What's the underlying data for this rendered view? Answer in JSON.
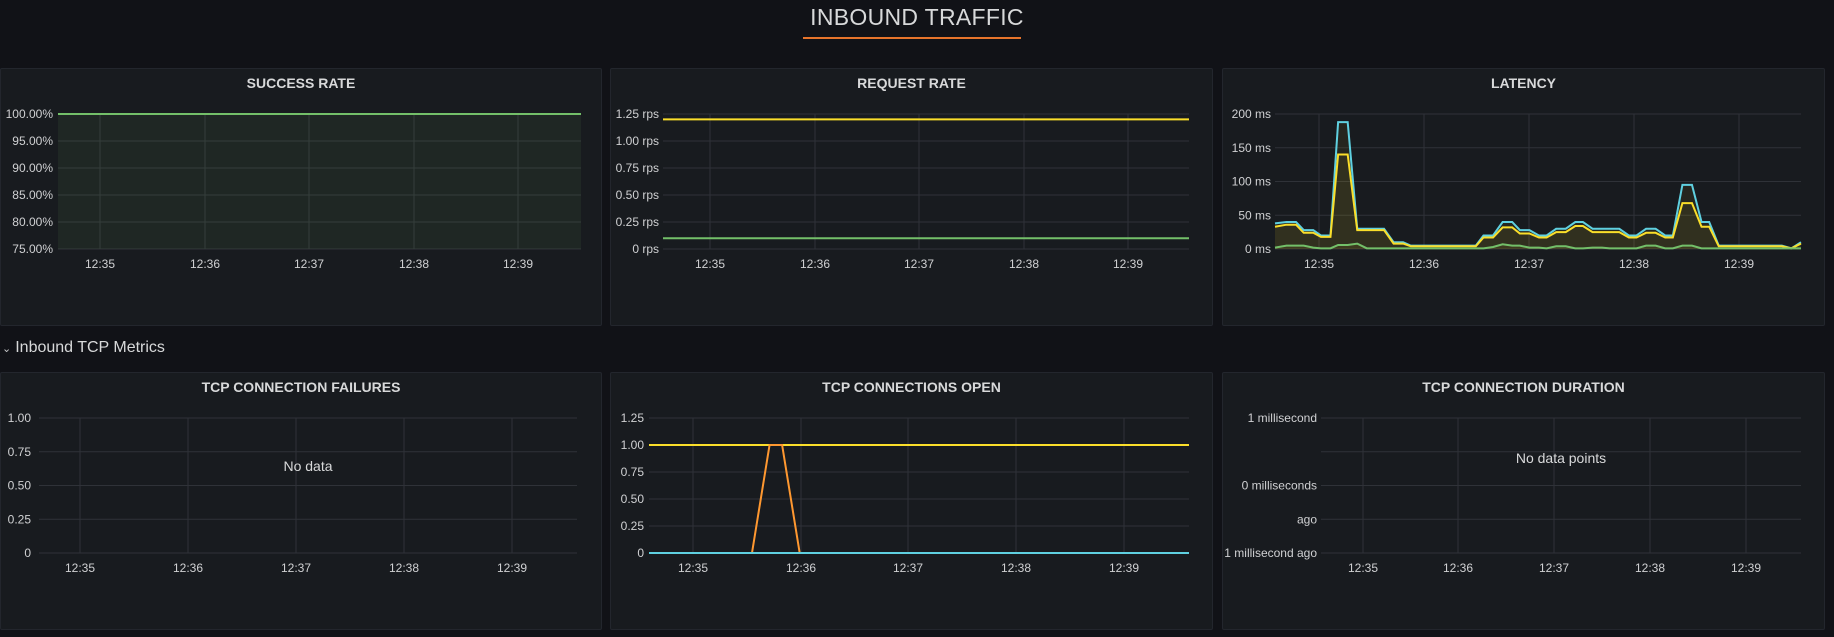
{
  "header": {
    "title": "INBOUND TRAFFIC"
  },
  "row": {
    "title": "Inbound TCP Metrics",
    "chevron": "chevron-down-icon"
  },
  "colors": {
    "green": "#73bf69",
    "yellow": "#fade2a",
    "cyan": "#5fd0e0",
    "orange": "#ff9830",
    "accent": "#e7742b",
    "panel_bg": "#181b1f"
  },
  "panels": {
    "success_rate": {
      "title": "SUCCESS RATE",
      "chart_data": {
        "type": "area",
        "x": [
          "12:35",
          "12:36",
          "12:37",
          "12:38",
          "12:39"
        ],
        "y_ticks": [
          "75.00%",
          "80.00%",
          "85.00%",
          "90.00%",
          "95.00%",
          "100.00%"
        ],
        "ylim": [
          75,
          100
        ],
        "series": [
          {
            "values_by_time": [
              [
                12.57,
                100
              ],
              [
                12.7,
                100
              ],
              [
                13.0,
                100
              ],
              [
                13.3,
                100
              ],
              [
                13.6,
                100
              ],
              [
                13.9,
                100
              ],
              [
                14.2,
                100
              ],
              [
                14.5,
                100
              ],
              [
                14.72,
                100
              ]
            ]
          }
        ]
      }
    },
    "request_rate": {
      "title": "REQUEST RATE",
      "chart_data": {
        "type": "line",
        "x": [
          "12:35",
          "12:36",
          "12:37",
          "12:38",
          "12:39"
        ],
        "y_ticks": [
          "0 rps",
          "0.25 rps",
          "0.50 rps",
          "0.75 rps",
          "1.00 rps",
          "1.25 rps"
        ],
        "ylim": [
          0,
          1.25
        ],
        "series": [
          {
            "values_by_time": [
              [
                12.57,
                1.2
              ],
              [
                14.72,
                1.2
              ]
            ]
          },
          {
            "values_by_time": [
              [
                12.57,
                0.1
              ],
              [
                14.72,
                0.1
              ]
            ]
          }
        ]
      }
    },
    "latency": {
      "title": "LATENCY",
      "chart_data": {
        "type": "line",
        "x": [
          "12:35",
          "12:36",
          "12:37",
          "12:38",
          "12:39"
        ],
        "y_ticks": [
          "0 ms",
          "50 ms",
          "100 ms",
          "150 ms",
          "200 ms"
        ],
        "ylim": [
          0,
          200
        ],
        "series": [
          {
            "values_by_time": [
              [
                12.57,
                38
              ],
              [
                12.63,
                40
              ],
              [
                12.68,
                40
              ],
              [
                12.72,
                28
              ],
              [
                12.77,
                28
              ],
              [
                12.81,
                20
              ],
              [
                12.86,
                20
              ],
              [
                12.9,
                188
              ],
              [
                12.95,
                188
              ],
              [
                13.0,
                30
              ],
              [
                13.05,
                30
              ],
              [
                13.1,
                30
              ],
              [
                13.14,
                30
              ],
              [
                13.19,
                10
              ],
              [
                13.24,
                10
              ],
              [
                13.28,
                5
              ],
              [
                13.33,
                5
              ],
              [
                13.38,
                5
              ],
              [
                13.43,
                5
              ],
              [
                13.48,
                5
              ],
              [
                13.52,
                5
              ],
              [
                13.57,
                5
              ],
              [
                13.62,
                5
              ],
              [
                13.66,
                20
              ],
              [
                13.71,
                20
              ],
              [
                13.76,
                40
              ],
              [
                13.81,
                40
              ],
              [
                13.85,
                28
              ],
              [
                13.9,
                28
              ],
              [
                13.95,
                20
              ],
              [
                13.99,
                20
              ],
              [
                14.04,
                30
              ],
              [
                14.09,
                30
              ],
              [
                14.14,
                40
              ],
              [
                14.18,
                40
              ],
              [
                14.23,
                30
              ],
              [
                14.28,
                30
              ],
              [
                14.32,
                30
              ],
              [
                14.37,
                30
              ],
              [
                14.42,
                20
              ],
              [
                14.46,
                20
              ],
              [
                14.51,
                30
              ],
              [
                14.56,
                30
              ],
              [
                14.61,
                20
              ],
              [
                14.65,
                20
              ],
              [
                14.7,
                95
              ],
              [
                14.75,
                95
              ],
              [
                14.8,
                40
              ],
              [
                14.84,
                40
              ],
              [
                14.89,
                5
              ],
              [
                14.94,
                5
              ],
              [
                14.99,
                5
              ],
              [
                15.03,
                5
              ],
              [
                15.08,
                5
              ],
              [
                15.13,
                5
              ],
              [
                15.18,
                5
              ],
              [
                15.22,
                5
              ],
              [
                15.27,
                1
              ],
              [
                15.32,
                10
              ]
            ]
          },
          {
            "values_by_time": [
              [
                12.57,
                33
              ],
              [
                12.63,
                36
              ],
              [
                12.68,
                36
              ],
              [
                12.72,
                24
              ],
              [
                12.77,
                24
              ],
              [
                12.81,
                18
              ],
              [
                12.86,
                18
              ],
              [
                12.9,
                140
              ],
              [
                12.95,
                140
              ],
              [
                13.0,
                28
              ],
              [
                13.05,
                28
              ],
              [
                13.1,
                28
              ],
              [
                13.14,
                28
              ],
              [
                13.19,
                8
              ],
              [
                13.24,
                8
              ],
              [
                13.28,
                4
              ],
              [
                13.33,
                4
              ],
              [
                13.38,
                4
              ],
              [
                13.43,
                4
              ],
              [
                13.48,
                4
              ],
              [
                13.52,
                4
              ],
              [
                13.57,
                4
              ],
              [
                13.62,
                4
              ],
              [
                13.66,
                17
              ],
              [
                13.71,
                17
              ],
              [
                13.76,
                32
              ],
              [
                13.81,
                32
              ],
              [
                13.85,
                23
              ],
              [
                13.9,
                23
              ],
              [
                13.95,
                17
              ],
              [
                13.99,
                17
              ],
              [
                14.04,
                25
              ],
              [
                14.09,
                25
              ],
              [
                14.14,
                34
              ],
              [
                14.18,
                34
              ],
              [
                14.23,
                25
              ],
              [
                14.28,
                25
              ],
              [
                14.32,
                25
              ],
              [
                14.37,
                25
              ],
              [
                14.42,
                17
              ],
              [
                14.46,
                17
              ],
              [
                14.51,
                24
              ],
              [
                14.56,
                24
              ],
              [
                14.61,
                17
              ],
              [
                14.65,
                17
              ],
              [
                14.7,
                68
              ],
              [
                14.75,
                68
              ],
              [
                14.8,
                33
              ],
              [
                14.84,
                33
              ],
              [
                14.89,
                4
              ],
              [
                14.94,
                4
              ],
              [
                14.99,
                4
              ],
              [
                15.03,
                4
              ],
              [
                15.08,
                4
              ],
              [
                15.13,
                4
              ],
              [
                15.18,
                4
              ],
              [
                15.22,
                4
              ],
              [
                15.27,
                1
              ],
              [
                15.32,
                8
              ]
            ]
          },
          {
            "values_by_time": [
              [
                12.57,
                2
              ],
              [
                12.63,
                5
              ],
              [
                12.68,
                5
              ],
              [
                12.72,
                5
              ],
              [
                12.77,
                2
              ],
              [
                12.81,
                1
              ],
              [
                12.86,
                1
              ],
              [
                12.9,
                6
              ],
              [
                12.95,
                6
              ],
              [
                13.0,
                8
              ],
              [
                13.05,
                1
              ],
              [
                13.1,
                1
              ],
              [
                13.14,
                1
              ],
              [
                13.19,
                1
              ],
              [
                13.24,
                1
              ],
              [
                13.28,
                1
              ],
              [
                13.33,
                1
              ],
              [
                13.38,
                1
              ],
              [
                13.43,
                1
              ],
              [
                13.48,
                1
              ],
              [
                13.52,
                1
              ],
              [
                13.57,
                1
              ],
              [
                13.62,
                1
              ],
              [
                13.66,
                1
              ],
              [
                13.71,
                3
              ],
              [
                13.76,
                7
              ],
              [
                13.81,
                5
              ],
              [
                13.85,
                5
              ],
              [
                13.9,
                2
              ],
              [
                13.95,
                2
              ],
              [
                13.99,
                1
              ],
              [
                14.04,
                4
              ],
              [
                14.09,
                4
              ],
              [
                14.14,
                1
              ],
              [
                14.18,
                1
              ],
              [
                14.23,
                2
              ],
              [
                14.28,
                2
              ],
              [
                14.32,
                1
              ],
              [
                14.37,
                1
              ],
              [
                14.42,
                1
              ],
              [
                14.46,
                1
              ],
              [
                14.51,
                5
              ],
              [
                14.56,
                5
              ],
              [
                14.61,
                1
              ],
              [
                14.65,
                1
              ],
              [
                14.7,
                5
              ],
              [
                14.75,
                5
              ],
              [
                14.8,
                1
              ],
              [
                14.84,
                1
              ],
              [
                14.89,
                1
              ],
              [
                14.94,
                1
              ],
              [
                14.99,
                1
              ],
              [
                15.03,
                1
              ],
              [
                15.08,
                1
              ],
              [
                15.13,
                1
              ],
              [
                15.18,
                1
              ],
              [
                15.22,
                1
              ],
              [
                15.27,
                1
              ],
              [
                15.32,
                1
              ]
            ]
          }
        ]
      }
    },
    "tcp_failures": {
      "title": "TCP CONNECTION FAILURES",
      "chart_data": {
        "type": "line",
        "x": [
          "12:35",
          "12:36",
          "12:37",
          "12:38",
          "12:39"
        ],
        "y_ticks": [
          "0",
          "0.25",
          "0.50",
          "0.75",
          "1.00"
        ],
        "ylim": [
          0,
          1
        ],
        "message": "No data",
        "series": []
      }
    },
    "tcp_open": {
      "title": "TCP CONNECTIONS OPEN",
      "chart_data": {
        "type": "line",
        "x": [
          "12:35",
          "12:36",
          "12:37",
          "12:38",
          "12:39"
        ],
        "y_ticks": [
          "0",
          "0.25",
          "0.50",
          "0.75",
          "1.00",
          "1.25"
        ],
        "ylim": [
          0,
          1.25
        ],
        "series": [
          {
            "values_by_time": [
              [
                12.57,
                1
              ],
              [
                14.72,
                1
              ]
            ]
          },
          {
            "values_by_time": [
              [
                12.57,
                0
              ],
              [
                12.98,
                0
              ],
              [
                13.05,
                1
              ],
              [
                13.1,
                1
              ],
              [
                13.17,
                0
              ],
              [
                14.72,
                0
              ]
            ]
          },
          {
            "values_by_time": [
              [
                12.57,
                0
              ],
              [
                12.98,
                0
              ],
              [
                13.17,
                0
              ],
              [
                14.72,
                0
              ]
            ]
          }
        ]
      }
    },
    "tcp_duration": {
      "title": "TCP CONNECTION DURATION",
      "chart_data": {
        "type": "line",
        "x": [
          "12:35",
          "12:36",
          "12:37",
          "12:38",
          "12:39"
        ],
        "y_ticks": [
          "1 millisecond ago",
          "ago",
          "0 milliseconds",
          "",
          "1 millisecond"
        ],
        "message": "No data points",
        "series": []
      }
    }
  }
}
